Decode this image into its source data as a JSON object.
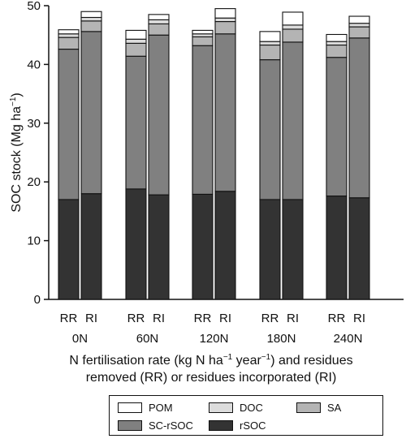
{
  "chart_data": {
    "type": "bar",
    "stacked": true,
    "ylabel": "SOC stock (Mg ha",
    "ylabel_sup": "−1",
    "ylabel_end": ")",
    "ylim": [
      0,
      50
    ],
    "yticks": [
      "0",
      "10",
      "20",
      "30",
      "40",
      "50"
    ],
    "xlabel_line1_a": "N fertilisation rate (kg N ha",
    "xlabel_line1_sup1": "−1",
    "xlabel_line1_b": " year",
    "xlabel_line1_sup2": "−1",
    "xlabel_line1_c": ") and residues",
    "xlabel_line2": "removed (RR) or residues incorporated (RI)",
    "groups": [
      "0N",
      "60N",
      "120N",
      "180N",
      "240N"
    ],
    "bar_labels": [
      "RR",
      "RI"
    ],
    "categories": [
      "0N RR",
      "0N RI",
      "60N RR",
      "60N RI",
      "120N RR",
      "120N RI",
      "180N RR",
      "180N RI",
      "240N RR",
      "240N RI"
    ],
    "series": [
      {
        "name": "rSOC",
        "color": "#333333",
        "values": [
          17.0,
          18.0,
          18.8,
          17.8,
          17.9,
          18.4,
          17.0,
          17.0,
          17.6,
          17.3
        ]
      },
      {
        "name": "SC-rSOC",
        "color": "#808080",
        "values": [
          25.6,
          27.6,
          22.6,
          27.2,
          25.3,
          26.8,
          23.8,
          26.8,
          23.6,
          27.2
        ]
      },
      {
        "name": "SA",
        "color": "#b4b4b4",
        "values": [
          2.0,
          1.8,
          2.2,
          1.9,
          1.5,
          2.1,
          2.5,
          2.2,
          2.1,
          1.9
        ]
      },
      {
        "name": "DOC",
        "color": "#dcdcdc",
        "values": [
          0.6,
          0.6,
          0.7,
          0.7,
          0.5,
          0.6,
          0.6,
          0.7,
          0.6,
          0.6
        ]
      },
      {
        "name": "POM",
        "color": "#ffffff",
        "values": [
          0.7,
          1.0,
          1.5,
          0.9,
          0.6,
          1.6,
          1.7,
          2.2,
          1.2,
          1.2
        ]
      }
    ],
    "legend": {
      "position": "bottom",
      "items": [
        {
          "label": "POM",
          "color": "#ffffff"
        },
        {
          "label": "DOC",
          "color": "#dcdcdc"
        },
        {
          "label": "SA",
          "color": "#b4b4b4"
        },
        {
          "label": "SC-rSOC",
          "color": "#808080"
        },
        {
          "label": "rSOC",
          "color": "#333333"
        }
      ]
    }
  }
}
